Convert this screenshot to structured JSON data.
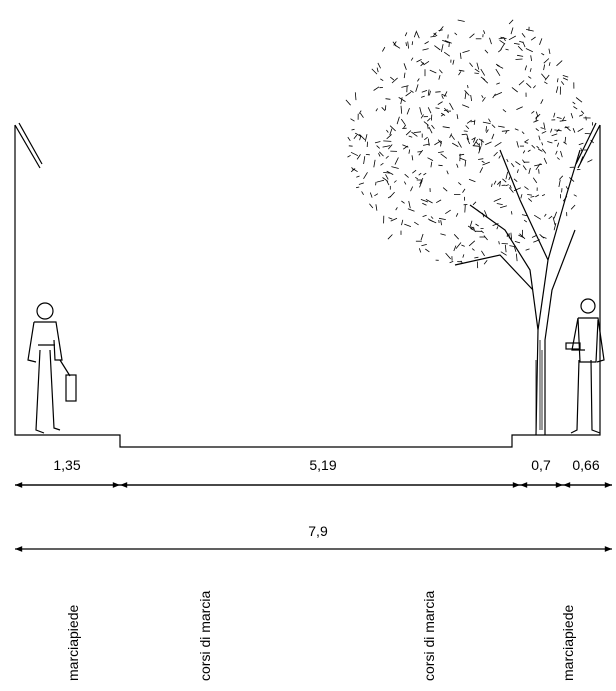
{
  "dimensions": {
    "segments": [
      "1,35",
      "5,19",
      "0,7",
      "0,66"
    ],
    "total": "7,9"
  },
  "zones": [
    "marciapiede",
    "corsi di marcia",
    "corsi di marcia",
    "marciapiede"
  ]
}
